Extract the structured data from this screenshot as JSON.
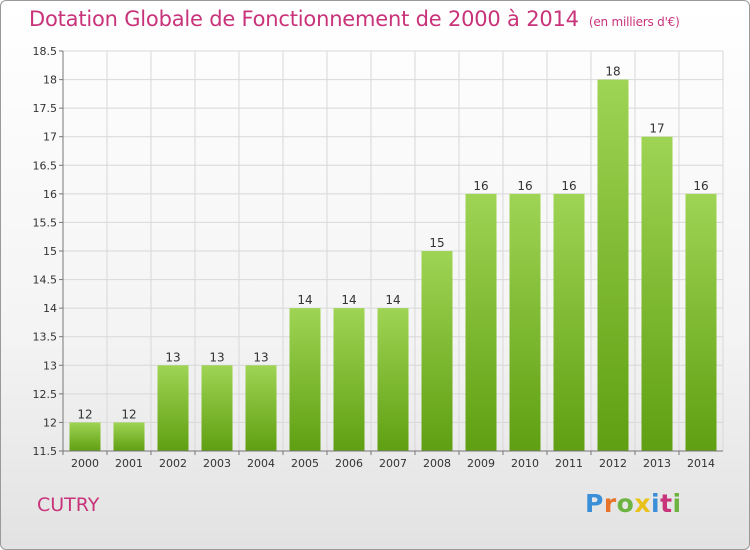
{
  "title": "Dotation Globale de Fonctionnement de 2000 à 2014",
  "subtitle": "(en milliers d'€)",
  "commune": "CUTRY",
  "brand": {
    "letters": [
      "P",
      "r",
      "o",
      "x",
      "i",
      "t",
      "i"
    ],
    "colors": [
      "#3a8fd8",
      "#e8732a",
      "#6db33f",
      "#e8c21b",
      "#3a8fd8",
      "#c8337a",
      "#6db33f"
    ]
  },
  "colors": {
    "accent": "#c8337a",
    "bar_top": "#9fd454",
    "bar_bottom": "#5f9f12",
    "grid": "#d8d8d8",
    "axis": "#777777"
  },
  "chart_data": {
    "type": "bar",
    "categories": [
      "2000",
      "2001",
      "2002",
      "2003",
      "2004",
      "2005",
      "2006",
      "2007",
      "2008",
      "2009",
      "2010",
      "2011",
      "2012",
      "2013",
      "2014"
    ],
    "values": [
      12,
      12,
      13,
      13,
      13,
      14,
      14,
      14,
      15,
      16,
      16,
      16,
      18,
      17,
      16
    ],
    "data_labels": [
      "12",
      "12",
      "13",
      "13",
      "13",
      "14",
      "14",
      "14",
      "15",
      "16",
      "16",
      "16",
      "18",
      "17",
      "16"
    ],
    "yticks": [
      "11.5",
      "12",
      "12.5",
      "13",
      "13.5",
      "14",
      "14.5",
      "15",
      "15.5",
      "16",
      "16.5",
      "17",
      "17.5",
      "18",
      "18.5"
    ],
    "ylim": [
      11.5,
      18.5
    ],
    "xlabel": "",
    "ylabel": "",
    "grid": true
  }
}
